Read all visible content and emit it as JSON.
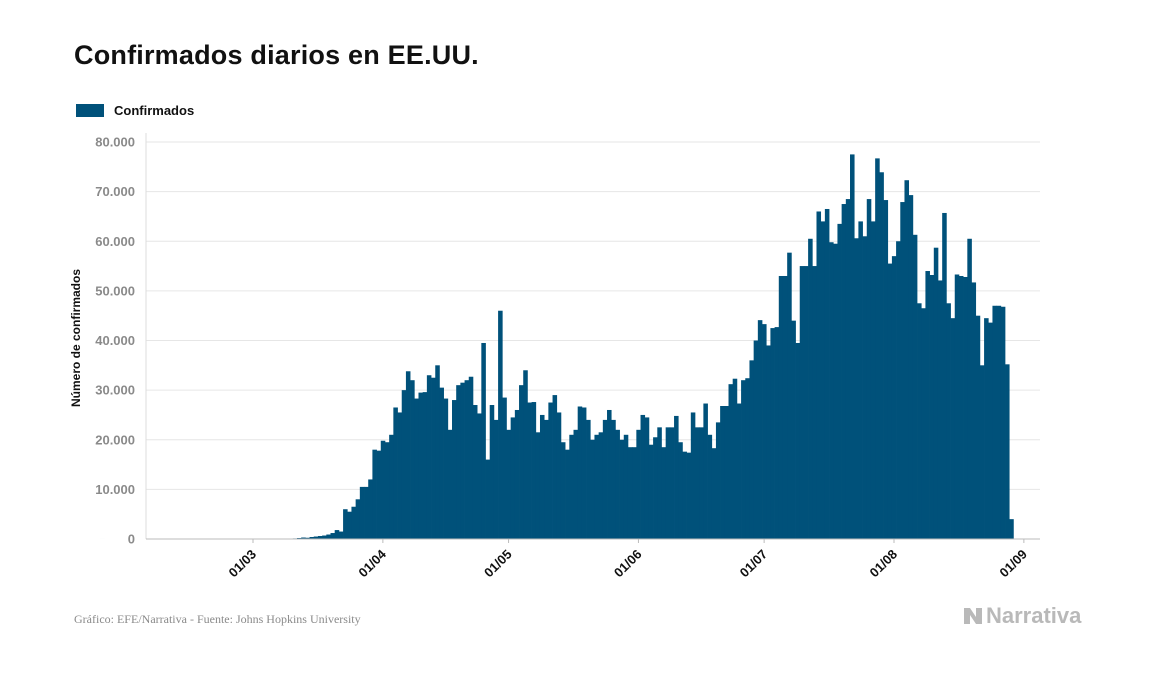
{
  "title": "Confirmados diarios en EE.UU.",
  "legend": {
    "label": "Confirmados",
    "color": "#00517a"
  },
  "source": "Gráfico: EFE/Narrativa - Fuente: Johns Hopkins University",
  "brand": {
    "name": "Narrativa",
    "logo": "narrativa-n-logo",
    "color": "#b9b9b9"
  },
  "chart_data": {
    "type": "bar",
    "title": "Confirmados diarios en EE.UU.",
    "xlabel": "",
    "ylabel": "Número de confirmados",
    "ylim": [
      0,
      80000
    ],
    "yticks": [
      0,
      10000,
      20000,
      30000,
      40000,
      50000,
      60000,
      70000,
      80000
    ],
    "ytick_labels": [
      "0",
      "10.000",
      "20.000",
      "30.000",
      "40.000",
      "50.000",
      "60.000",
      "70.000",
      "80.000"
    ],
    "x_start": "2020-01-22",
    "xticks": [
      "01/03",
      "01/04",
      "01/05",
      "01/06",
      "01/07",
      "01/08",
      "01/09"
    ],
    "xtick_dates": [
      "2020-03-01",
      "2020-04-01",
      "2020-05-01",
      "2020-06-01",
      "2020-07-01",
      "2020-08-01",
      "2020-09-01"
    ],
    "grid": true,
    "legend_position": "top-left",
    "series": [
      {
        "name": "Confirmados",
        "color": "#00517a",
        "values": [
          1,
          0,
          0,
          2,
          1,
          0,
          0,
          0,
          0,
          1,
          0,
          0,
          0,
          0,
          1,
          0,
          0,
          0,
          0,
          1,
          0,
          0,
          0,
          0,
          0,
          0,
          0,
          0,
          0,
          0,
          0,
          0,
          0,
          0,
          0,
          0,
          0,
          0,
          0,
          5,
          10,
          18,
          30,
          15,
          25,
          50,
          60,
          80,
          100,
          120,
          200,
          300,
          250,
          400,
          500,
          600,
          700,
          900,
          1200,
          1800,
          1500,
          6000,
          5500,
          6500,
          8000,
          10500,
          10500,
          12000,
          18000,
          17800,
          19800,
          19500,
          21000,
          26500,
          25500,
          30000,
          33800,
          32000,
          28300,
          29500,
          29600,
          33000,
          32500,
          35000,
          30500,
          28300,
          22000,
          28000,
          31000,
          31500,
          32000,
          32700,
          27000,
          25300,
          39500,
          16000,
          27000,
          24000,
          46000,
          28500,
          22000,
          24500,
          26000,
          31000,
          34000,
          27500,
          27600,
          21500,
          25000,
          24000,
          27500,
          29000,
          25500,
          19500,
          18000,
          21000,
          22000,
          26700,
          26500,
          24000,
          20000,
          21000,
          21500,
          24000,
          26000,
          24000,
          22000,
          20000,
          21000,
          18500,
          18500,
          22000,
          25000,
          24500,
          19000,
          20500,
          22500,
          18500,
          22500,
          22500,
          24800,
          19500,
          17600,
          17400,
          25500,
          22500,
          22500,
          27300,
          21000,
          18300,
          23500,
          26800,
          26800,
          31200,
          32300,
          27300,
          32000,
          32400,
          36000,
          40000,
          44100,
          43300,
          39000,
          42500,
          42700,
          53000,
          53000,
          57700,
          44000,
          39500,
          55000,
          55000,
          60500,
          55000,
          66000,
          64000,
          66500,
          59800,
          59500,
          63500,
          67500,
          68500,
          77500,
          60600,
          64000,
          61000,
          68500,
          64000,
          76700,
          73900,
          68300,
          55500,
          57000,
          60000,
          67900,
          72300,
          69300,
          61300,
          47500,
          46500,
          54000,
          53200,
          58700,
          52100,
          65700,
          47500,
          44500,
          53300,
          53000,
          52800,
          60500,
          51700,
          45000,
          35000,
          44500,
          43600,
          47000,
          47000,
          46800,
          35200,
          4000
        ]
      }
    ]
  }
}
